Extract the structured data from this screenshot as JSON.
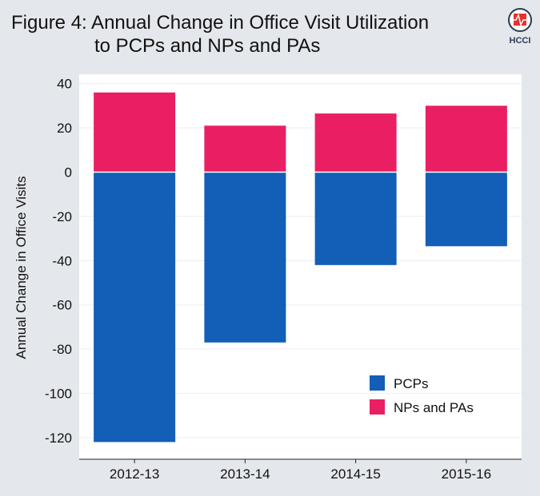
{
  "title_line1": "Figure 4: Annual Change in Office Visit Utilization",
  "title_line2": "to PCPs and NPs and PAs",
  "logo_text": "HCCI",
  "colors": {
    "pcps": "#135eb6",
    "nps_pas": "#ea1f63",
    "background": "#e4e7ec",
    "plot": "#ffffff"
  },
  "chart_data": {
    "type": "bar",
    "stacked": true,
    "categories": [
      "2012-13",
      "2013-14",
      "2014-15",
      "2015-16"
    ],
    "series": [
      {
        "name": "PCPs",
        "values": [
          -122,
          -77,
          -42,
          -33.5
        ]
      },
      {
        "name": "NPs and PAs",
        "values": [
          36,
          21,
          26.5,
          30
        ]
      }
    ],
    "xlabel": "",
    "ylabel": "Annual Change in Office Visits",
    "ylim": [
      -130,
      44
    ],
    "yticks": [
      40,
      20,
      0,
      -20,
      -40,
      -60,
      -80,
      -100,
      -120
    ],
    "grid": true,
    "legend_position": "bottom-right"
  }
}
